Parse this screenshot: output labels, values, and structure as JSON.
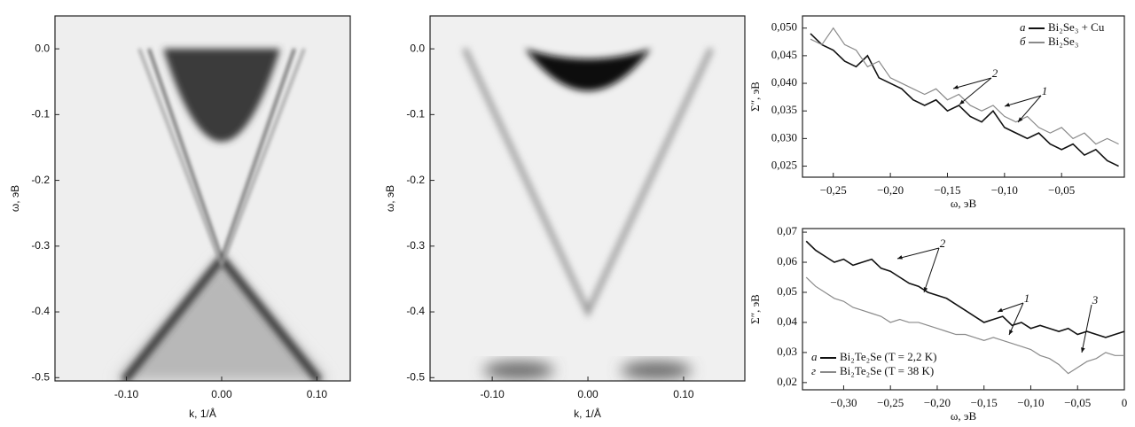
{
  "chart_data": [
    {
      "type": "image",
      "xlabel": "k, 1/Å",
      "ylabel": "ω, эВ",
      "xlim": [
        -0.175,
        0.135
      ],
      "ylim": [
        -0.505,
        0.05
      ],
      "xticks": [
        {
          "value": -0.1,
          "label": "-0.10"
        },
        {
          "value": 0,
          "label": "0.00"
        },
        {
          "value": 0.1,
          "label": "0.10"
        }
      ],
      "yticks": [
        {
          "value": 0,
          "label": "0.0"
        },
        -0.1,
        -0.2,
        -0.3,
        -0.4,
        -0.5
      ]
    },
    {
      "type": "image",
      "xlabel": "k, 1/Å",
      "ylabel": "ω, эВ",
      "xlim": [
        -0.165,
        0.164
      ],
      "ylim": [
        -0.505,
        0.05
      ],
      "xticks": [
        {
          "value": -0.1,
          "label": "-0.10"
        },
        {
          "value": 0,
          "label": "0.00"
        },
        {
          "value": 0.1,
          "label": "0.10"
        }
      ],
      "yticks": [
        {
          "value": 0,
          "label": "0.0"
        },
        -0.1,
        -0.2,
        -0.3,
        -0.4,
        -0.5
      ]
    },
    {
      "type": "line",
      "xlabel": "ω, эВ",
      "ylabel": "Σ″, эВ",
      "legend": "upper right",
      "xlim": [
        -0.277,
        0.005
      ],
      "ylim": [
        0.023,
        0.0522
      ],
      "xticks": [
        {
          "value": -0.25,
          "label": "−0,25"
        },
        {
          "value": -0.2,
          "label": "−0,20"
        },
        {
          "value": -0.15,
          "label": "−0,15"
        },
        {
          "value": -0.1,
          "label": "−0,10"
        },
        {
          "value": -0.05,
          "label": "−0,05"
        }
      ],
      "yticks": [
        {
          "value": 0.05,
          "label": "0,050"
        },
        {
          "value": 0.045,
          "label": "0,045"
        },
        {
          "value": 0.04,
          "label": "0,040"
        },
        {
          "value": 0.035,
          "label": "0,035"
        },
        {
          "value": 0.03,
          "label": "0,030"
        },
        {
          "value": 0.025,
          "label": "0,025"
        }
      ],
      "x": [
        -0.27,
        -0.26,
        -0.25,
        -0.24,
        -0.23,
        -0.22,
        -0.21,
        -0.2,
        -0.19,
        -0.18,
        -0.17,
        -0.16,
        -0.15,
        -0.14,
        -0.13,
        -0.12,
        -0.11,
        -0.1,
        -0.09,
        -0.08,
        -0.07,
        -0.06,
        -0.05,
        -0.04,
        -0.03,
        -0.02,
        -0.01,
        0
      ],
      "series": [
        {
          "name": "Bi₂Se₃ + Cu",
          "label": "a",
          "color": "#111111",
          "values": [
            0.049,
            0.047,
            0.046,
            0.044,
            0.043,
            0.045,
            0.041,
            0.04,
            0.039,
            0.037,
            0.036,
            0.037,
            0.035,
            0.036,
            0.034,
            0.033,
            0.035,
            0.032,
            0.031,
            0.03,
            0.031,
            0.029,
            0.028,
            0.029,
            0.027,
            0.028,
            0.026,
            0.025
          ]
        },
        {
          "name": "Bi₂Se₃",
          "label": "б",
          "color": "#8a8a8a",
          "values": [
            0.048,
            0.047,
            0.05,
            0.047,
            0.046,
            0.043,
            0.044,
            0.041,
            0.04,
            0.039,
            0.038,
            0.039,
            0.037,
            0.038,
            0.036,
            0.035,
            0.036,
            0.034,
            0.033,
            0.034,
            0.032,
            0.031,
            0.032,
            0.03,
            0.031,
            0.029,
            0.03,
            0.029
          ]
        }
      ],
      "annotations": [
        "2",
        "1"
      ]
    },
    {
      "type": "line",
      "xlabel": "ω, эВ",
      "ylabel": "Σ″, эВ",
      "legend": "lower left",
      "xlim": [
        -0.344,
        0
      ],
      "ylim": [
        0.0176,
        0.0712
      ],
      "xticks": [
        {
          "value": -0.3,
          "label": "−0,30"
        },
        {
          "value": -0.25,
          "label": "−0,25"
        },
        {
          "value": -0.2,
          "label": "−0,20"
        },
        {
          "value": -0.15,
          "label": "−0,15"
        },
        {
          "value": -0.1,
          "label": "−0,10"
        },
        {
          "value": -0.05,
          "label": "−0,05"
        },
        0
      ],
      "yticks": [
        {
          "value": 0.07,
          "label": "0,07"
        },
        {
          "value": 0.06,
          "label": "0,06"
        },
        {
          "value": 0.05,
          "label": "0,05"
        },
        {
          "value": 0.04,
          "label": "0,04"
        },
        {
          "value": 0.03,
          "label": "0,03"
        },
        {
          "value": 0.02,
          "label": "0,02"
        }
      ],
      "x": [
        -0.34,
        -0.33,
        -0.32,
        -0.31,
        -0.3,
        -0.29,
        -0.28,
        -0.27,
        -0.26,
        -0.25,
        -0.24,
        -0.23,
        -0.22,
        -0.21,
        -0.2,
        -0.19,
        -0.18,
        -0.17,
        -0.16,
        -0.15,
        -0.14,
        -0.13,
        -0.12,
        -0.11,
        -0.1,
        -0.09,
        -0.08,
        -0.07,
        -0.06,
        -0.05,
        -0.04,
        -0.03,
        -0.02,
        -0.01,
        0
      ],
      "series": [
        {
          "name": "Bi₂Te₂Se (T = 2,2 K)",
          "label": "a",
          "color": "#111111",
          "values": [
            0.067,
            0.064,
            0.062,
            0.06,
            0.061,
            0.059,
            0.06,
            0.061,
            0.058,
            0.057,
            0.055,
            0.053,
            0.052,
            0.05,
            0.049,
            0.048,
            0.046,
            0.044,
            0.042,
            0.04,
            0.041,
            0.042,
            0.039,
            0.04,
            0.038,
            0.039,
            0.038,
            0.037,
            0.038,
            0.036,
            0.037,
            0.036,
            0.035,
            0.036,
            0.037
          ]
        },
        {
          "name": "Bi₂Te₂Se (T = 38 K)",
          "label": "г",
          "color": "#8a8a8a",
          "values": [
            0.055,
            0.052,
            0.05,
            0.048,
            0.047,
            0.045,
            0.044,
            0.043,
            0.042,
            0.04,
            0.041,
            0.04,
            0.04,
            0.039,
            0.038,
            0.037,
            0.036,
            0.036,
            0.035,
            0.034,
            0.035,
            0.034,
            0.033,
            0.032,
            0.031,
            0.029,
            0.028,
            0.026,
            0.023,
            0.025,
            0.027,
            0.028,
            0.03,
            0.029,
            0.029
          ]
        }
      ],
      "annotations": [
        "2",
        "1",
        "3"
      ]
    }
  ]
}
